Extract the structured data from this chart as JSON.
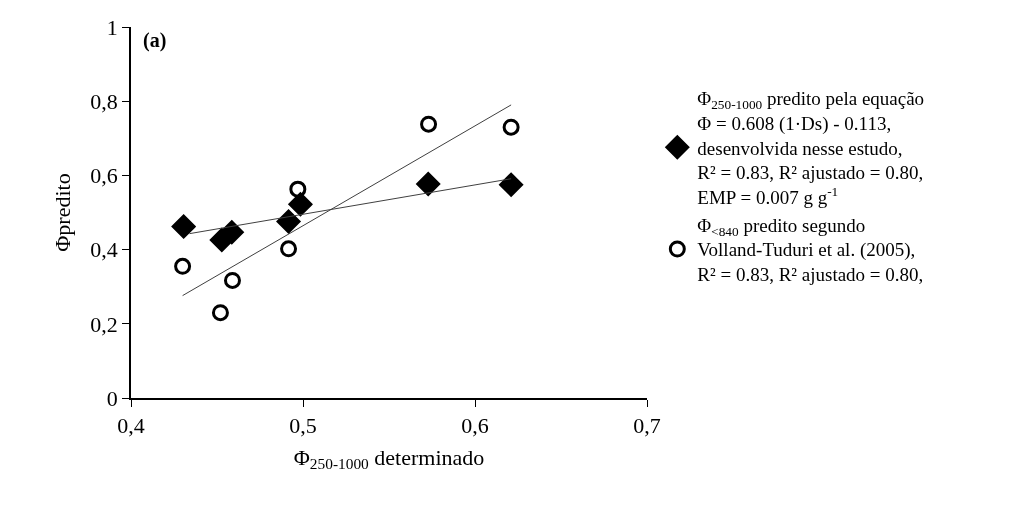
{
  "chart_data": {
    "type": "scatter",
    "xlabel": "Φ$_{250-1000}$ determinado",
    "ylabel": "Φpredito",
    "annotations": [
      "(a)"
    ],
    "xlim": [
      0.4,
      0.7
    ],
    "xticks": [
      {
        "value": 0.4,
        "label": "0,4"
      },
      {
        "value": 0.5,
        "label": "0,5"
      },
      {
        "value": 0.6,
        "label": "0,6"
      },
      {
        "value": 0.7,
        "label": "0,7"
      }
    ],
    "ylim": [
      0,
      1
    ],
    "yticks": [
      0,
      {
        "value": 0.2,
        "label": "0,2"
      },
      {
        "value": 0.4,
        "label": "0,4"
      },
      {
        "value": 0.6,
        "label": "0,6"
      },
      {
        "value": 0.8,
        "label": "0,8"
      },
      1
    ],
    "grid": false,
    "legend": "right",
    "series": [
      {
        "name": "Φ$_{250-1000}$ predito pela equação\nΦ = 0.608 (1·Ds) - 0.113,\ndesenvolvida nesse estudo,\nR² = 0.83, R² ajustado = 0.80,\nEMP = 0.007 g g$^{-1}$",
        "color": "#000000",
        "marker": "diamond",
        "x": [
          0.4306,
          0.4528,
          0.4586,
          0.4916,
          0.4985,
          0.5728,
          0.621
        ],
        "values": [
          0.462,
          0.426,
          0.447,
          0.476,
          0.522,
          0.577,
          0.575
        ]
      },
      {
        "name": "Φ$_{<840}$ predito segundo\nVolland-Tuduri et al. (2005),\nR² = 0.83, R² ajustado = 0.80,",
        "color": "#000000",
        "marker": "circle",
        "x": [
          0.43,
          0.452,
          0.459,
          0.4916,
          0.497,
          0.573,
          0.621
        ],
        "values": [
          0.355,
          0.23,
          0.317,
          0.402,
          0.563,
          0.738,
          0.73
        ]
      },
      {
        "type": "line",
        "color": "#404040",
        "marker": "none",
        "x": [
          0.434,
          0.621
        ],
        "values": [
          0.443,
          0.591
        ]
      },
      {
        "type": "line",
        "color": "#404040",
        "marker": "none",
        "x": [
          0.43,
          0.621
        ],
        "values": [
          0.276,
          0.79
        ]
      }
    ]
  }
}
